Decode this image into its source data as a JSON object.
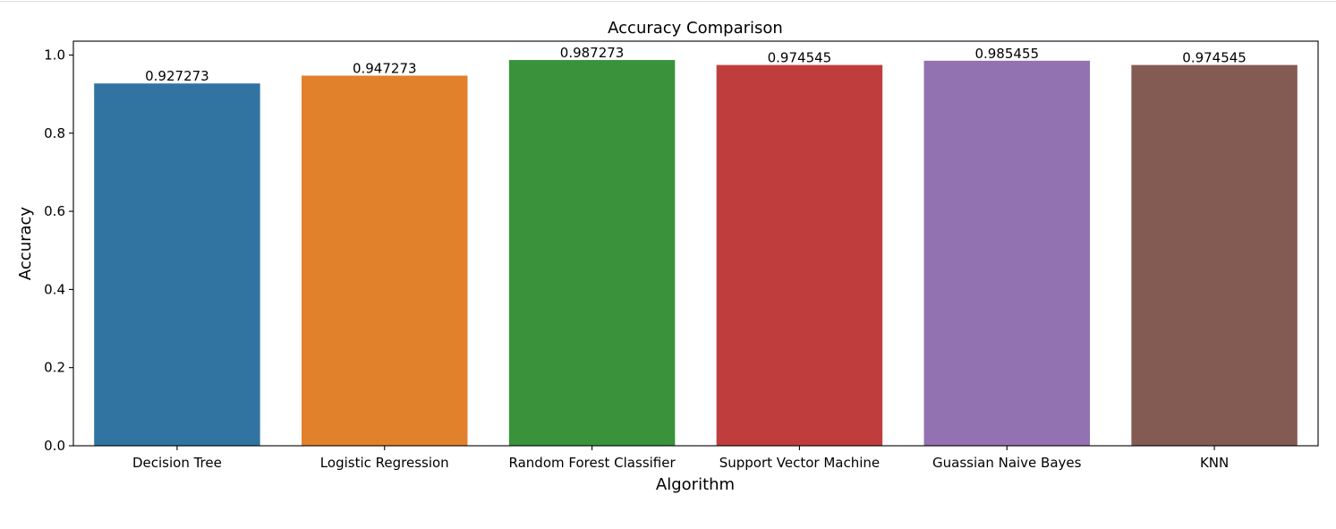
{
  "chart_data": {
    "type": "bar",
    "title": "Accuracy Comparison",
    "xlabel": "Algorithm",
    "ylabel": "Accuracy",
    "categories": [
      "Decision Tree",
      "Logistic Regression",
      "Random Forest Classifier",
      "Support Vector Machine",
      "Guassian Naive Bayes",
      "KNN"
    ],
    "values": [
      0.927273,
      0.947273,
      0.987273,
      0.974545,
      0.985455,
      0.974545
    ],
    "value_labels": [
      "0.927273",
      "0.947273",
      "0.987273",
      "0.974545",
      "0.985455",
      "0.974545"
    ],
    "colors": [
      "#3274a1",
      "#e1812c",
      "#3a923a",
      "#c03d3e",
      "#9372b2",
      "#845b53"
    ],
    "ylim": [
      0,
      1.0355
    ],
    "yticks": [
      0.0,
      0.2,
      0.4,
      0.6,
      0.8,
      1.0
    ],
    "ytick_labels": [
      "0.0",
      "0.2",
      "0.4",
      "0.6",
      "0.8",
      "1.0"
    ],
    "grid": false,
    "legend": "none"
  }
}
